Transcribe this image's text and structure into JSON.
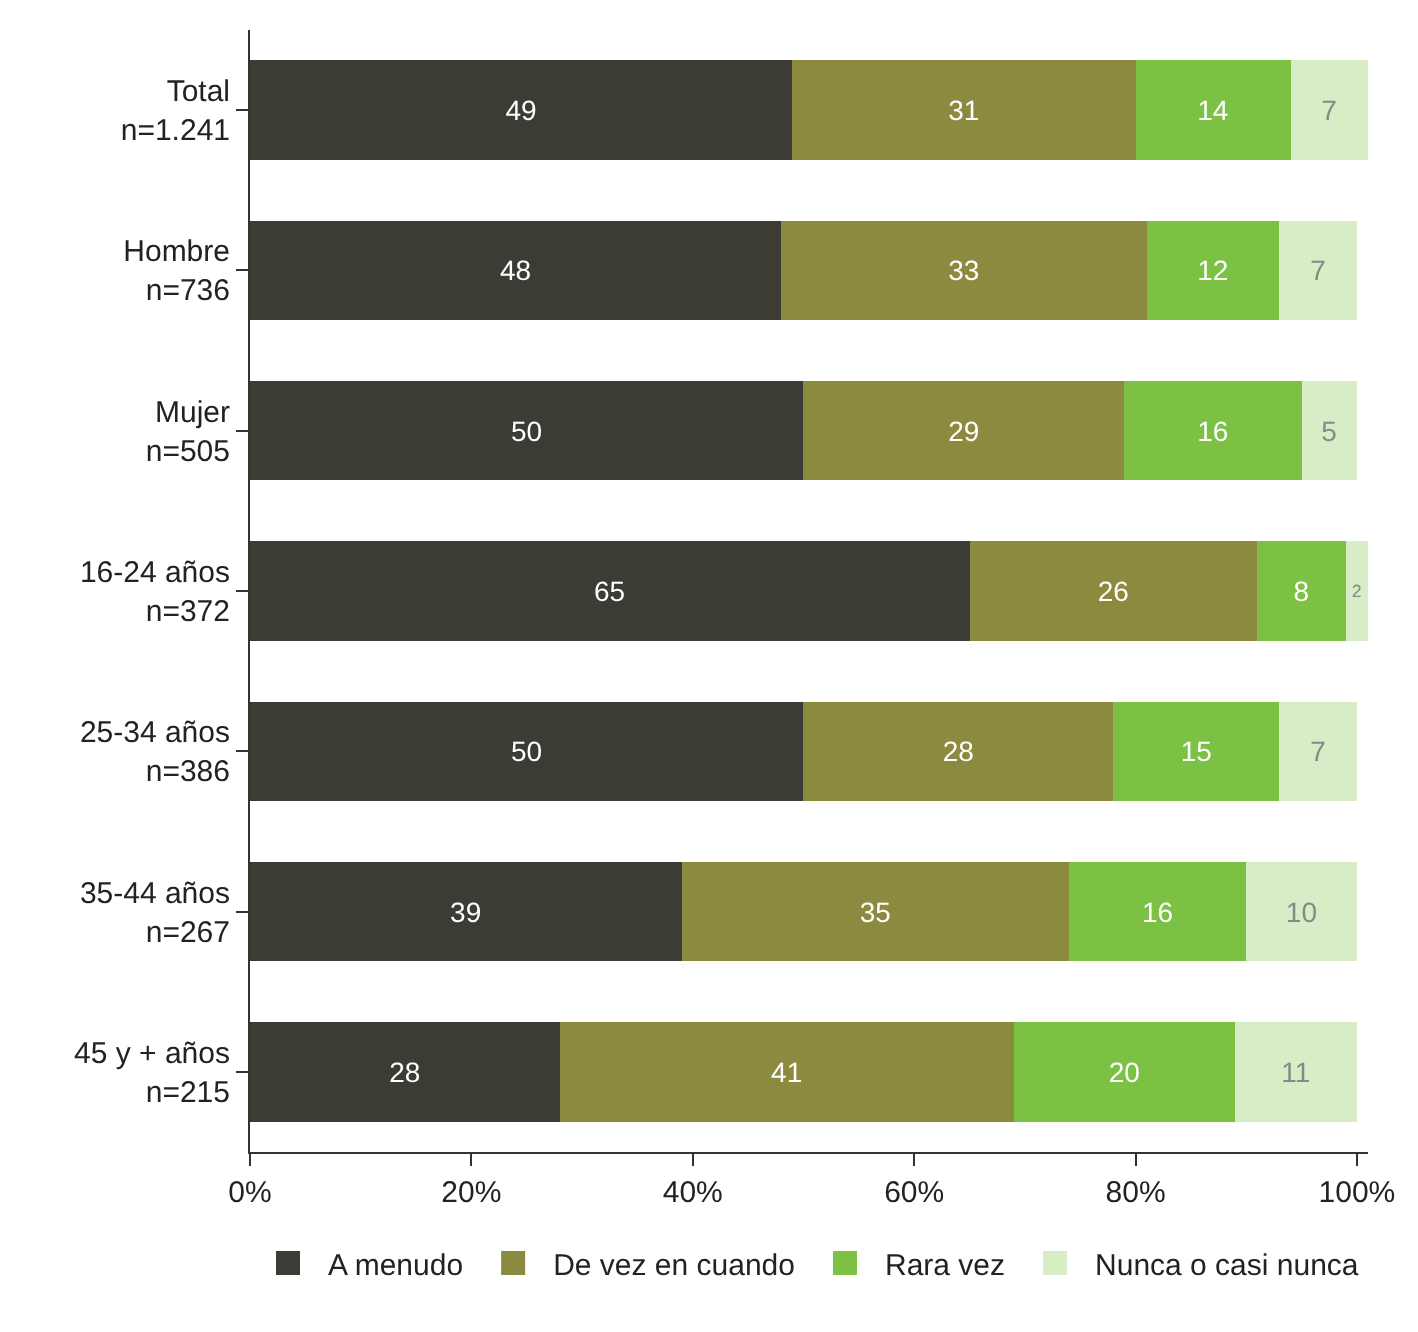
{
  "chart_data": {
    "type": "bar",
    "orientation": "horizontal",
    "stacked": true,
    "data_labels": true,
    "legend": "bottom",
    "categories": [
      "Total\nn=1.241",
      "Hombre\nn=736",
      "Mujer\nn=505",
      "16-24 años\nn=372",
      "25-34 años\nn=386",
      "35-44 años\nn=267",
      "45 y + años\nn=215"
    ],
    "series": [
      {
        "name": "A menudo",
        "color": "#3c3b34",
        "values": [
          49,
          48,
          50,
          65,
          50,
          39,
          28
        ]
      },
      {
        "name": "De vez en cuando",
        "color": "#8c8a3e",
        "values": [
          31,
          33,
          29,
          26,
          28,
          35,
          41
        ]
      },
      {
        "name": "Rara vez",
        "color": "#7cc143",
        "values": [
          14,
          12,
          16,
          8,
          15,
          16,
          20
        ]
      },
      {
        "name": "Nunca o casi nunca",
        "color": "#d8edc5",
        "values": [
          7,
          7,
          5,
          2,
          7,
          10,
          11
        ]
      }
    ],
    "xlim": [
      0,
      101
    ],
    "xticks": [
      {
        "value": 0,
        "label": "0%"
      },
      {
        "value": 20,
        "label": "20%"
      },
      {
        "value": 40,
        "label": "40%"
      },
      {
        "value": 60,
        "label": "60%"
      },
      {
        "value": 80,
        "label": "80%"
      },
      {
        "value": 100,
        "label": "100%"
      }
    ]
  }
}
